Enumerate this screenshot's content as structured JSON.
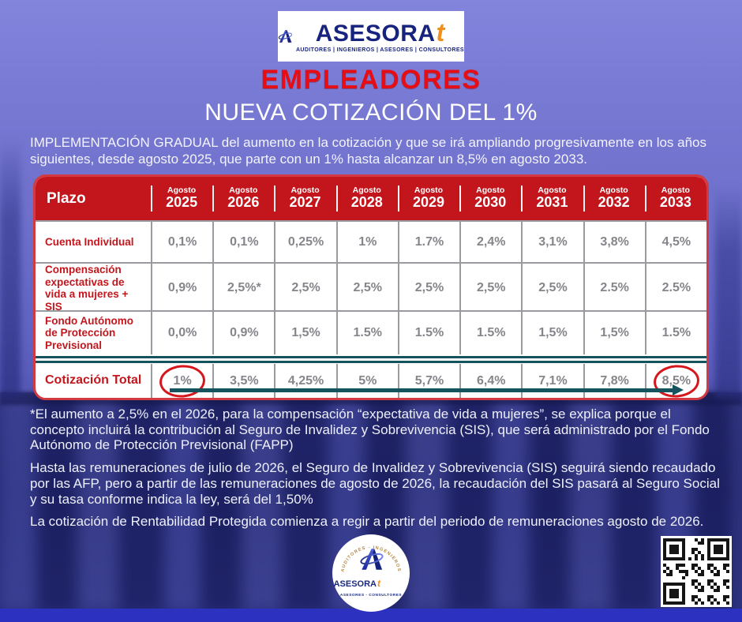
{
  "brand": {
    "logo_text": "ASESORA",
    "logo_suffix": "t",
    "tagline": "AUDITORES | INGENIEROS | ASESORES | CONSULTORES"
  },
  "header": {
    "audience": "EMPLEADORES",
    "title": "NUEVA COTIZACIÓN DEL 1%",
    "intro": "IMPLEMENTACIÓN GRADUAL del aumento en la cotización y que se irá ampliando progresivamente en los años siguientes, desde agosto 2025, que parte con un 1% hasta alcanzar un 8,5% en agosto 2033."
  },
  "table": {
    "corner_label": "Plazo",
    "month_label": "Agosto",
    "years": [
      "2025",
      "2026",
      "2027",
      "2028",
      "2029",
      "2030",
      "2031",
      "2032",
      "2033"
    ],
    "rows": [
      {
        "label": "Cuenta Individual",
        "values": [
          "0,1%",
          "0,1%",
          "0,25%",
          "1%",
          "1.7%",
          "2,4%",
          "3,1%",
          "3,8%",
          "4,5%"
        ]
      },
      {
        "label": "Compensación expectativas de vida a mujeres + SIS",
        "values": [
          "0,9%",
          "2,5%*",
          "2,5%",
          "2,5%",
          "2,5%",
          "2,5%",
          "2,5%",
          "2.5%",
          "2.5%"
        ]
      },
      {
        "label": "Fondo Autónomo de Protección Previsional",
        "values": [
          "0,0%",
          "0,9%",
          "1,5%",
          "1.5%",
          "1.5%",
          "1.5%",
          "1,5%",
          "1,5%",
          "1.5%"
        ]
      },
      {
        "label": "Cotización Total",
        "values": [
          "1%",
          "3,5%",
          "4,25%",
          "5%",
          "5,7%",
          "6,4%",
          "7,1%",
          "7,8%",
          "8,5%"
        ],
        "total": true,
        "circled_columns": [
          0,
          8
        ]
      }
    ]
  },
  "notes": [
    "*El aumento a 2,5% en el 2026, para la compensación “expectativa de vida a mujeres”, se explica porque el concepto incluirá la contribución al Seguro de Invalidez y Sobrevivencia (SIS), que será administrado por el Fondo Autónomo de Protección Previsional (FAPP)",
    "Hasta las remuneraciones de julio de 2026, el Seguro de Invalidez y Sobrevivencia (SIS) seguirá siendo recaudado por las AFP, pero a partir de las remuneraciones de agosto de 2026, la recaudación del SIS pasará al Seguro Social y su tasa conforme indica la ley, será del 1,50%",
    "La cotización de Rentabilidad Protegida comienza a regir a partir del periodo de remuneraciones agosto de 2026."
  ],
  "badge": {
    "arc_top": "AUDITORES - INGENIEROS",
    "name": "ASESORA",
    "name_suffix": "t",
    "arc_bottom": "ASESORES - CONSULTORES"
  },
  "colors": {
    "background_top": "#8384dc",
    "background_bottom": "#34378d",
    "bottom_bar_blue": "#2c31c0",
    "accent_red": "#e60d15",
    "table_header_red": "#c2151c",
    "row_label_red": "#c3161d",
    "value_gray": "#85858b",
    "arrow_teal": "#15535e",
    "brand_navy": "#17247f",
    "brand_orange": "#ef8f1e",
    "white": "#ffffff"
  }
}
